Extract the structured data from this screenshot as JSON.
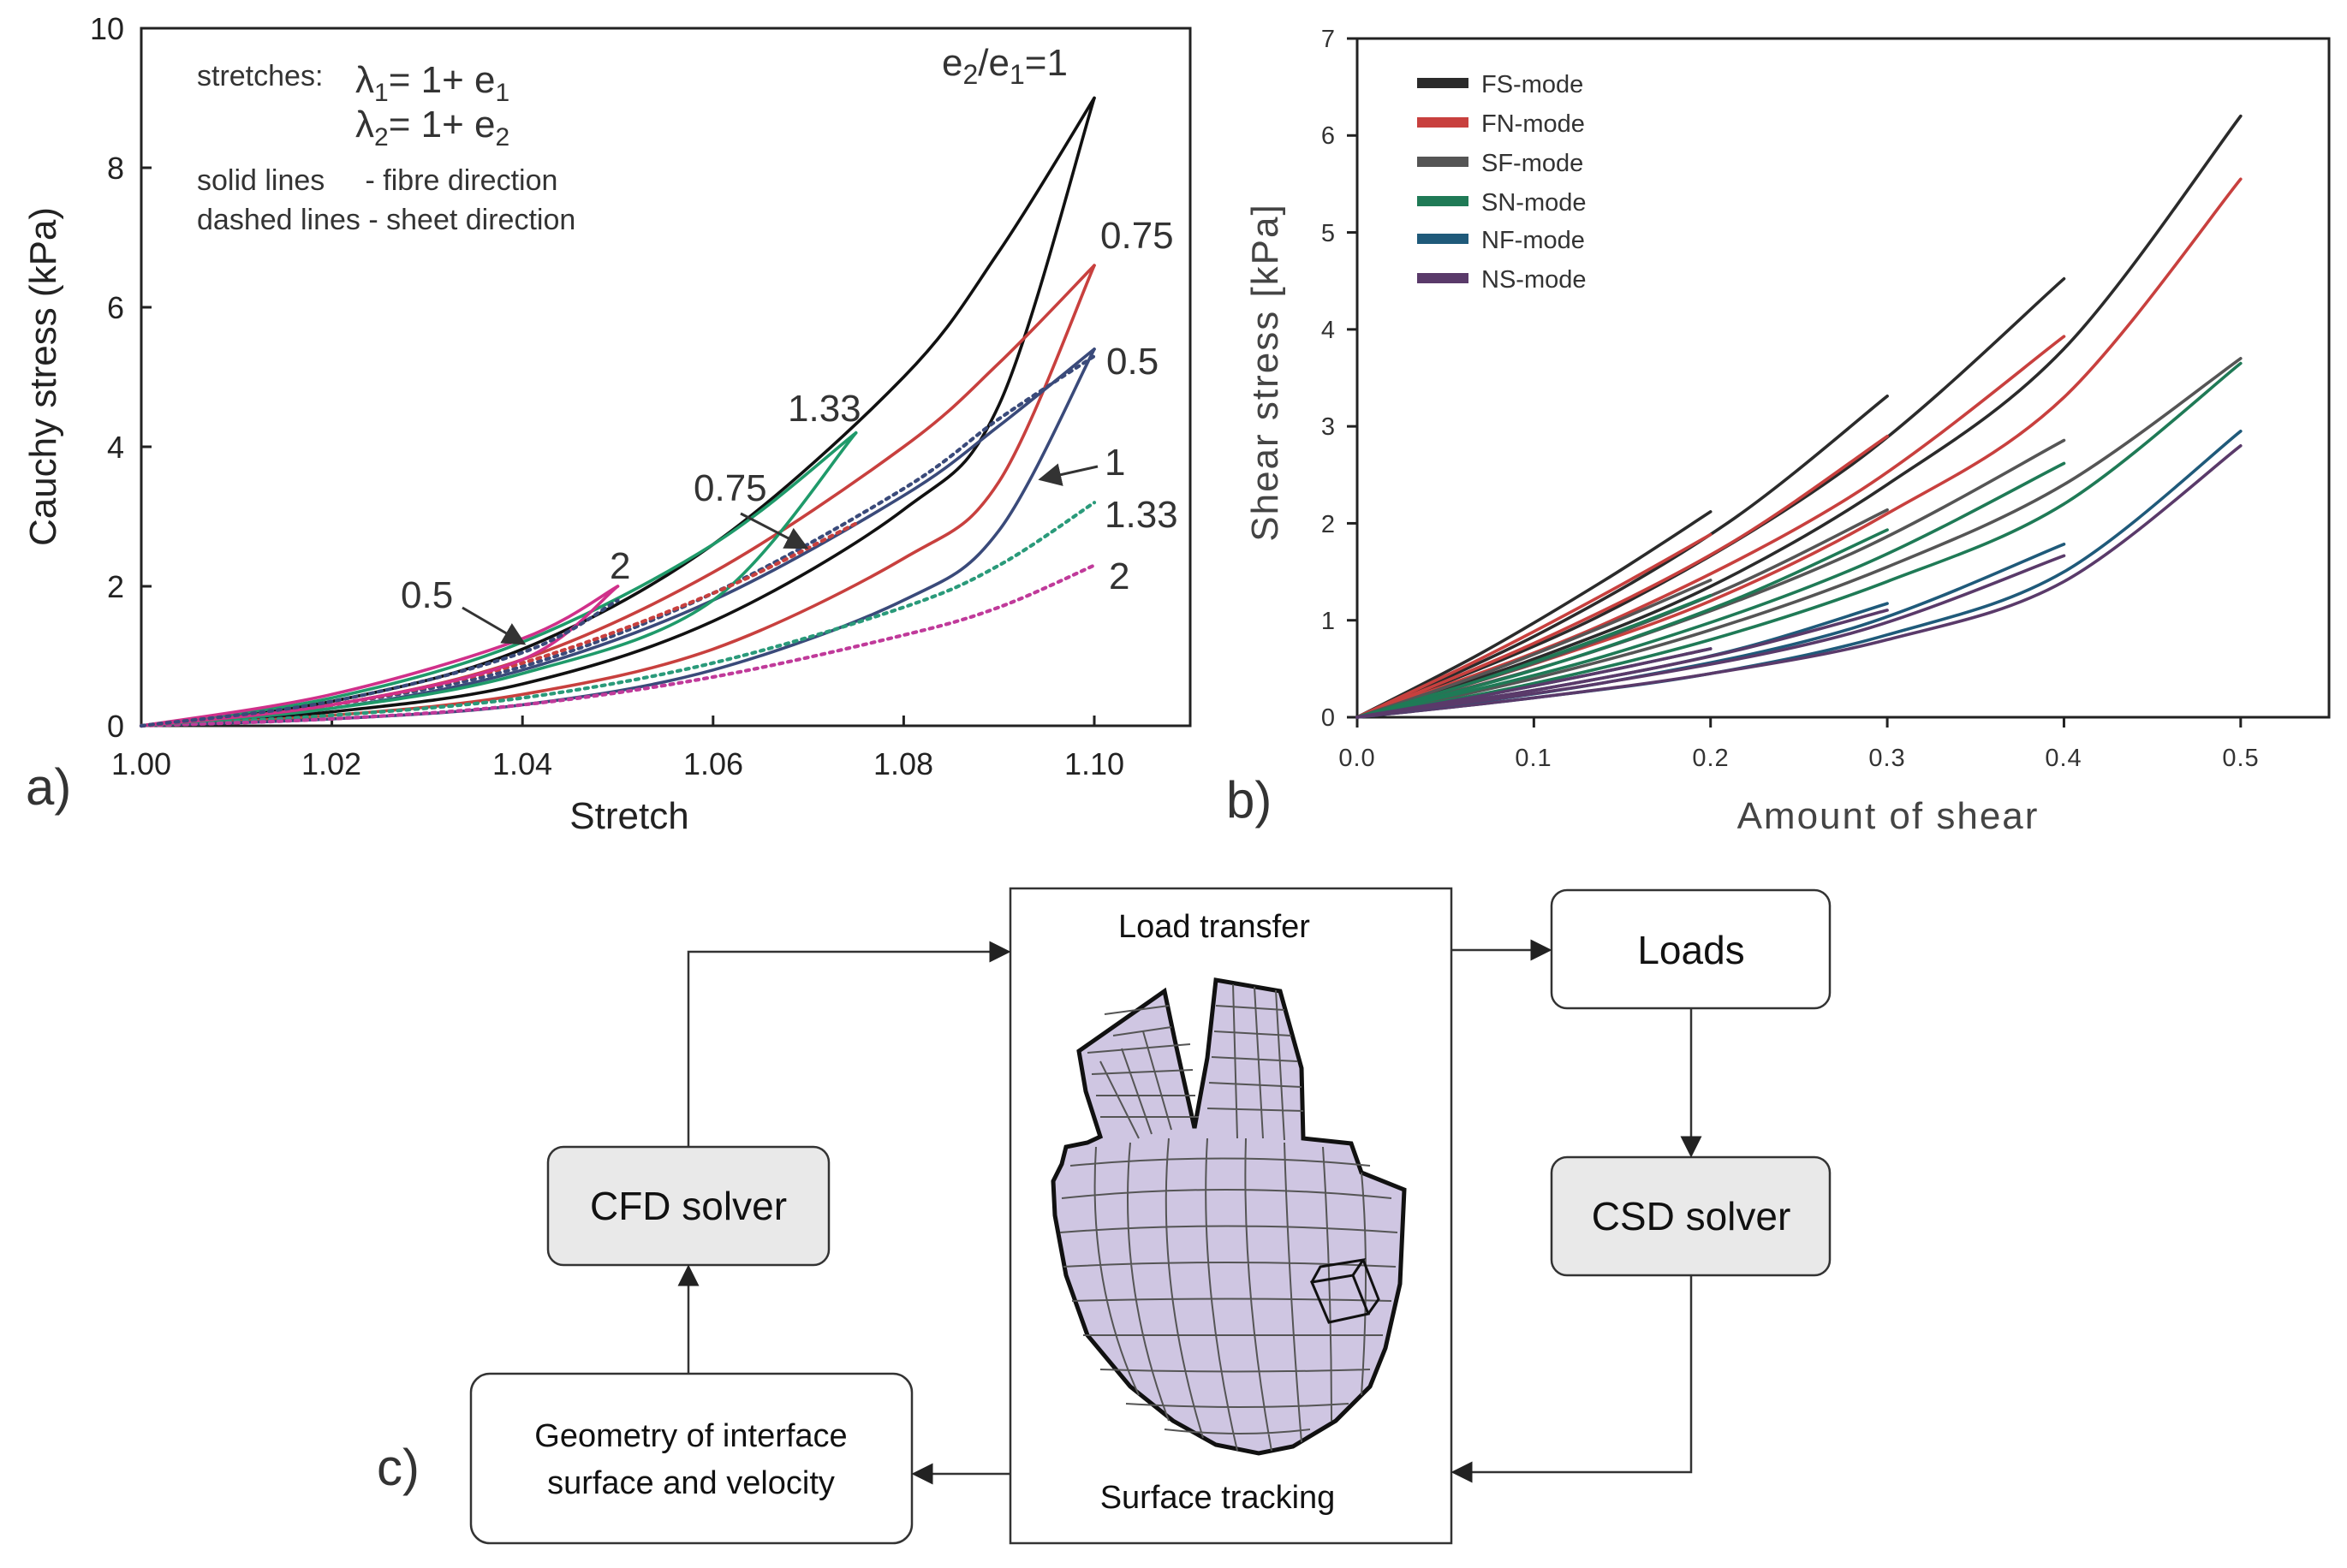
{
  "panel_a": {
    "label": "a)",
    "info": {
      "stretches_prefix": "stretches:",
      "lambda1_lhs": "λ",
      "lambda1_sub": "1",
      "lambda1_mid": "= 1+ e",
      "lambda1_sub2": "1",
      "lambda2_lhs": "λ",
      "lambda2_sub": "2",
      "lambda2_mid": "= 1+ e",
      "lambda2_sub2": "2",
      "solid_note": "solid lines     - fibre direction",
      "dashed_note": "dashed lines - sheet direction"
    },
    "ratio_label": {
      "e2": "e",
      "e2_sub": "2",
      "slash": "/e",
      "e1_sub": "1",
      "eq": "=1"
    },
    "curve_labels": {
      "top_075": "0.75",
      "top_05": "0.5",
      "mid_1": "1",
      "mid_133": "1.33",
      "low_2": "2",
      "left_133": "1.33",
      "left_075": "0.75",
      "left_05": "0.5",
      "left_2": "2"
    }
  },
  "panel_b": {
    "label": "b)",
    "legend": [
      {
        "name": "FS-mode",
        "color": "#2b2b2b"
      },
      {
        "name": "FN-mode",
        "color": "#c8403e"
      },
      {
        "name": "SF-mode",
        "color": "#555555"
      },
      {
        "name": "SN-mode",
        "color": "#1f7a56"
      },
      {
        "name": "NF-mode",
        "color": "#1f5a7a"
      },
      {
        "name": "NS-mode",
        "color": "#5a3a6a"
      }
    ]
  },
  "panel_c": {
    "label": "c)",
    "load_transfer": "Load transfer",
    "surface_tracking": "Surface tracking",
    "loads": "Loads",
    "csd_solver": "CSD solver",
    "cfd_solver": "CFD solver",
    "geometry_line1": "Geometry of interface",
    "geometry_line2": "surface and velocity"
  },
  "chart_data": [
    {
      "type": "line",
      "title": "",
      "xlabel": "Stretch",
      "ylabel": "Cauchy stress (kPa)",
      "xlim": [
        1.0,
        1.11
      ],
      "ylim": [
        0,
        10
      ],
      "xticks": [
        "1.00",
        "1.02",
        "1.04",
        "1.06",
        "1.08",
        "1.10"
      ],
      "yticks": [
        "0",
        "2",
        "4",
        "6",
        "8",
        "10"
      ],
      "series": [
        {
          "name": "e2/e1=1 fibre (upper)",
          "style": "solid",
          "color": "#111111",
          "x": [
            1.0,
            1.02,
            1.04,
            1.06,
            1.08,
            1.09,
            1.1
          ],
          "y": [
            0,
            0.35,
            1.1,
            2.6,
            5.0,
            6.8,
            9.0
          ]
        },
        {
          "name": "e2/e1=1 fibre (lower)",
          "style": "solid",
          "color": "#111111",
          "x": [
            1.0,
            1.02,
            1.04,
            1.06,
            1.08,
            1.09,
            1.1
          ],
          "y": [
            0,
            0.2,
            0.6,
            1.5,
            3.1,
            4.6,
            9.0
          ]
        },
        {
          "name": "e2/e1=0.75 fibre (upper)",
          "style": "solid",
          "color": "#c8403e",
          "x": [
            1.0,
            1.02,
            1.04,
            1.06,
            1.08,
            1.09,
            1.1
          ],
          "y": [
            0,
            0.3,
            0.95,
            2.2,
            4.0,
            5.2,
            6.6
          ]
        },
        {
          "name": "e2/e1=0.75 fibre (lower)",
          "style": "solid",
          "color": "#c8403e",
          "x": [
            1.0,
            1.02,
            1.04,
            1.06,
            1.08,
            1.09,
            1.1
          ],
          "y": [
            0,
            0.15,
            0.45,
            1.1,
            2.4,
            3.5,
            6.6
          ]
        },
        {
          "name": "e2/e1=0.5 fibre (upper)",
          "style": "solid",
          "color": "#3a4a7a",
          "x": [
            1.0,
            1.02,
            1.04,
            1.06,
            1.08,
            1.09,
            1.1
          ],
          "y": [
            0,
            0.25,
            0.8,
            1.8,
            3.3,
            4.3,
            5.4
          ]
        },
        {
          "name": "e2/e1=0.5 fibre (lower)",
          "style": "solid",
          "color": "#3a4a7a",
          "x": [
            1.0,
            1.02,
            1.04,
            1.06,
            1.08,
            1.09,
            1.1
          ],
          "y": [
            0,
            0.1,
            0.3,
            0.8,
            1.8,
            2.8,
            5.4
          ]
        },
        {
          "name": "e2/e1=0.5 sheet (upper)",
          "style": "dashed",
          "color": "#3a4a7a",
          "x": [
            1.0,
            1.02,
            1.04,
            1.06,
            1.08,
            1.09,
            1.1
          ],
          "y": [
            0,
            0.3,
            0.85,
            1.9,
            3.4,
            4.4,
            5.3
          ]
        },
        {
          "name": "e2/e1=1.33 sheet",
          "style": "dashed",
          "color": "#2a9a7a",
          "x": [
            1.0,
            1.02,
            1.04,
            1.06,
            1.08,
            1.09,
            1.1
          ],
          "y": [
            0,
            0.15,
            0.4,
            0.9,
            1.7,
            2.3,
            3.2
          ]
        },
        {
          "name": "e2/e1=2 sheet",
          "style": "dashed",
          "color": "#c03a9a",
          "x": [
            1.0,
            1.02,
            1.04,
            1.06,
            1.08,
            1.09,
            1.1
          ],
          "y": [
            0,
            0.1,
            0.3,
            0.7,
            1.3,
            1.7,
            2.3
          ]
        },
        {
          "name": "e2/e1=1.33 fibre (upper)",
          "style": "solid",
          "color": "#1f9a6a",
          "x": [
            1.0,
            1.02,
            1.04,
            1.06,
            1.075
          ],
          "y": [
            0,
            0.4,
            1.2,
            2.6,
            4.2
          ]
        },
        {
          "name": "e2/e1=1.33 fibre (lower)",
          "style": "solid",
          "color": "#1f9a6a",
          "x": [
            1.0,
            1.02,
            1.04,
            1.06,
            1.075
          ],
          "y": [
            0,
            0.25,
            0.75,
            1.8,
            4.2
          ]
        },
        {
          "name": "e2/e1=0.75 sheet",
          "style": "dashed",
          "color": "#c8403e",
          "x": [
            1.0,
            1.02,
            1.04,
            1.06,
            1.075
          ],
          "y": [
            0,
            0.3,
            0.9,
            1.9,
            2.9
          ]
        },
        {
          "name": "e2/e1=2 fibre (upper)",
          "style": "solid",
          "color": "#d0308a",
          "x": [
            1.0,
            1.02,
            1.04,
            1.05
          ],
          "y": [
            0,
            0.45,
            1.25,
            2.0
          ]
        },
        {
          "name": "e2/e1=2 fibre (lower)",
          "style": "solid",
          "color": "#d0308a",
          "x": [
            1.0,
            1.02,
            1.04,
            1.05
          ],
          "y": [
            0,
            0.3,
            0.95,
            2.0
          ]
        },
        {
          "name": "e2/e1=0.5 sheet (short)",
          "style": "dashed",
          "color": "#3a4a7a",
          "x": [
            1.0,
            1.02,
            1.04,
            1.05
          ],
          "y": [
            0,
            0.35,
            1.05,
            1.8
          ]
        }
      ]
    },
    {
      "type": "line",
      "title": "",
      "xlabel": "Amount of shear",
      "ylabel": "Shear stress [kPa]",
      "xlim": [
        0,
        0.55
      ],
      "ylim": [
        0,
        7
      ],
      "xticks": [
        "0.0",
        "0.1",
        "0.2",
        "0.3",
        "0.4",
        "0.5"
      ],
      "yticks": [
        "0",
        "1",
        "2",
        "3",
        "4",
        "5",
        "6",
        "7"
      ],
      "series": [
        {
          "name": "FS-mode",
          "color": "#2b2b2b",
          "x": [
            0,
            0.1,
            0.2,
            0.3,
            0.4,
            0.5
          ],
          "y": [
            0,
            0.6,
            1.35,
            2.4,
            3.8,
            6.2
          ]
        },
        {
          "name": "FN-mode",
          "color": "#c8403e",
          "x": [
            0,
            0.1,
            0.2,
            0.3,
            0.4,
            0.5
          ],
          "y": [
            0,
            0.55,
            1.2,
            2.1,
            3.3,
            5.55
          ]
        },
        {
          "name": "SF-mode",
          "color": "#555555",
          "x": [
            0,
            0.1,
            0.2,
            0.3,
            0.4,
            0.5
          ],
          "y": [
            0,
            0.4,
            0.9,
            1.55,
            2.4,
            3.7
          ]
        },
        {
          "name": "SN-mode",
          "color": "#1f7a56",
          "x": [
            0,
            0.1,
            0.2,
            0.3,
            0.4,
            0.5
          ],
          "y": [
            0,
            0.35,
            0.8,
            1.4,
            2.2,
            3.65
          ]
        },
        {
          "name": "NF-mode",
          "color": "#1f5a7a",
          "x": [
            0,
            0.1,
            0.2,
            0.3,
            0.4,
            0.5
          ],
          "y": [
            0,
            0.2,
            0.45,
            0.85,
            1.5,
            2.95
          ]
        },
        {
          "name": "NS-mode",
          "color": "#5a3a6a",
          "x": [
            0,
            0.1,
            0.2,
            0.3,
            0.4,
            0.5
          ],
          "y": [
            0,
            0.2,
            0.45,
            0.8,
            1.4,
            2.8
          ]
        }
      ]
    }
  ]
}
